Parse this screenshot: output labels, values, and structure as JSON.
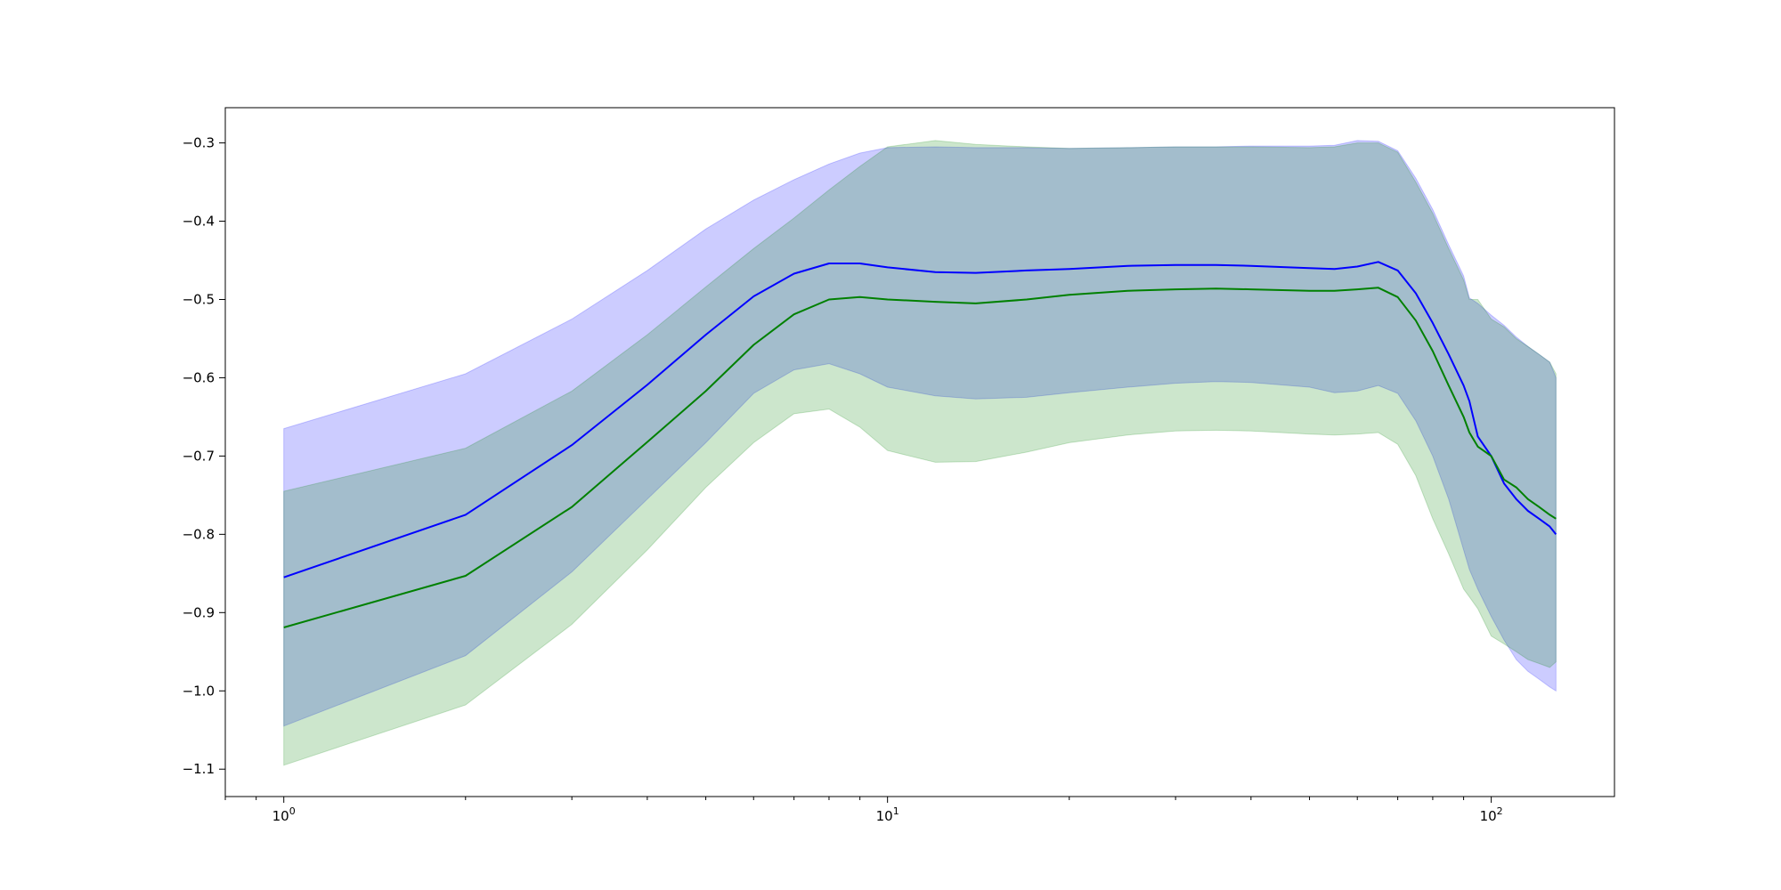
{
  "chart_data": {
    "type": "line",
    "title": "",
    "xlabel": "",
    "ylabel": "",
    "xscale": "log",
    "xlim": [
      0.8,
      160
    ],
    "ylim": [
      -1.135,
      -0.255
    ],
    "grid": false,
    "x_ticks": [
      {
        "value": 1,
        "base": "10",
        "exp": "0"
      },
      {
        "value": 10,
        "base": "10",
        "exp": "1"
      },
      {
        "value": 100,
        "base": "10",
        "exp": "2"
      }
    ],
    "y_ticks": [
      {
        "value": -0.3,
        "label": "−0.3"
      },
      {
        "value": -0.4,
        "label": "−0.4"
      },
      {
        "value": -0.5,
        "label": "−0.5"
      },
      {
        "value": -0.6,
        "label": "−0.6"
      },
      {
        "value": -0.7,
        "label": "−0.7"
      },
      {
        "value": -0.8,
        "label": "−0.8"
      },
      {
        "value": -0.9,
        "label": "−0.9"
      },
      {
        "value": -1.0,
        "label": "−1.0"
      },
      {
        "value": -1.1,
        "label": "−1.1"
      }
    ],
    "series": [
      {
        "color": "#0000ff",
        "band_color": "#0000ff",
        "band_opacity": 0.2,
        "x": [
          1,
          2,
          3,
          4,
          5,
          6,
          7,
          8,
          9,
          10,
          12,
          14,
          17,
          20,
          25,
          30,
          35,
          40,
          50,
          55,
          60,
          65,
          70,
          75,
          80,
          85,
          90,
          92,
          95,
          100,
          105,
          110,
          115,
          120,
          125,
          128
        ],
        "mean": [
          -0.855,
          -0.775,
          -0.686,
          -0.609,
          -0.545,
          -0.496,
          -0.467,
          -0.454,
          -0.454,
          -0.459,
          -0.465,
          -0.466,
          -0.463,
          -0.461,
          -0.457,
          -0.456,
          -0.456,
          -0.457,
          -0.46,
          -0.461,
          -0.458,
          -0.452,
          -0.463,
          -0.492,
          -0.53,
          -0.57,
          -0.61,
          -0.63,
          -0.675,
          -0.7,
          -0.735,
          -0.755,
          -0.77,
          -0.78,
          -0.79,
          -0.8
        ],
        "upper": [
          -0.665,
          -0.595,
          -0.525,
          -0.463,
          -0.41,
          -0.373,
          -0.347,
          -0.327,
          -0.313,
          -0.306,
          -0.305,
          -0.306,
          -0.306,
          -0.307,
          -0.306,
          -0.305,
          -0.305,
          -0.304,
          -0.304,
          -0.303,
          -0.297,
          -0.298,
          -0.31,
          -0.345,
          -0.385,
          -0.43,
          -0.47,
          -0.498,
          -0.505,
          -0.52,
          -0.533,
          -0.548,
          -0.56,
          -0.57,
          -0.58,
          -0.6
        ],
        "lower": [
          -1.045,
          -0.955,
          -0.848,
          -0.755,
          -0.683,
          -0.62,
          -0.59,
          -0.582,
          -0.595,
          -0.612,
          -0.623,
          -0.627,
          -0.625,
          -0.619,
          -0.612,
          -0.607,
          -0.605,
          -0.606,
          -0.612,
          -0.619,
          -0.617,
          -0.61,
          -0.62,
          -0.655,
          -0.7,
          -0.755,
          -0.82,
          -0.845,
          -0.87,
          -0.905,
          -0.935,
          -0.96,
          -0.975,
          -0.985,
          -0.995,
          -1.0
        ]
      },
      {
        "color": "#008000",
        "band_color": "#008000",
        "band_opacity": 0.2,
        "x": [
          1,
          2,
          3,
          4,
          5,
          6,
          7,
          8,
          9,
          10,
          12,
          14,
          17,
          20,
          25,
          30,
          35,
          40,
          50,
          55,
          60,
          65,
          70,
          75,
          80,
          85,
          90,
          92,
          95,
          100,
          105,
          110,
          115,
          120,
          125,
          128
        ],
        "mean": [
          -0.919,
          -0.853,
          -0.765,
          -0.682,
          -0.617,
          -0.558,
          -0.519,
          -0.5,
          -0.497,
          -0.5,
          -0.503,
          -0.505,
          -0.5,
          -0.494,
          -0.489,
          -0.487,
          -0.486,
          -0.487,
          -0.489,
          -0.489,
          -0.487,
          -0.485,
          -0.497,
          -0.527,
          -0.566,
          -0.61,
          -0.65,
          -0.67,
          -0.688,
          -0.7,
          -0.73,
          -0.74,
          -0.755,
          -0.765,
          -0.775,
          -0.78
        ],
        "upper": [
          -0.745,
          -0.69,
          -0.617,
          -0.545,
          -0.484,
          -0.435,
          -0.396,
          -0.36,
          -0.33,
          -0.305,
          -0.297,
          -0.302,
          -0.305,
          -0.307,
          -0.306,
          -0.305,
          -0.305,
          -0.305,
          -0.306,
          -0.305,
          -0.3,
          -0.3,
          -0.312,
          -0.35,
          -0.39,
          -0.435,
          -0.475,
          -0.5,
          -0.5,
          -0.525,
          -0.535,
          -0.55,
          -0.56,
          -0.57,
          -0.58,
          -0.595
        ],
        "lower": [
          -1.095,
          -1.018,
          -0.915,
          -0.82,
          -0.74,
          -0.683,
          -0.646,
          -0.64,
          -0.663,
          -0.693,
          -0.708,
          -0.707,
          -0.695,
          -0.683,
          -0.673,
          -0.668,
          -0.667,
          -0.668,
          -0.672,
          -0.673,
          -0.672,
          -0.67,
          -0.685,
          -0.725,
          -0.78,
          -0.825,
          -0.87,
          -0.88,
          -0.895,
          -0.93,
          -0.94,
          -0.95,
          -0.96,
          -0.965,
          -0.97,
          -0.963
        ]
      }
    ]
  }
}
